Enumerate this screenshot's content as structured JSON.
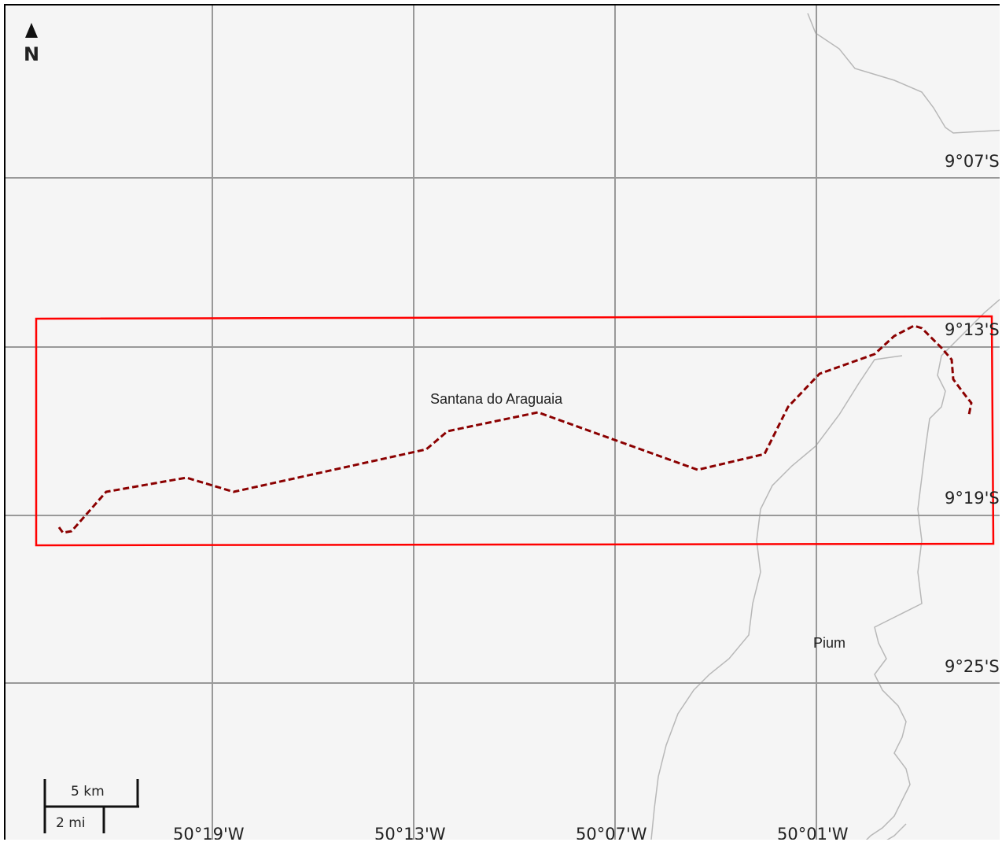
{
  "map": {
    "north_label": "N",
    "latitude_labels": [
      "9°07'S",
      "9°13'S",
      "9°19'S",
      "9°25'S"
    ],
    "longitude_labels": [
      "50°19'W",
      "50°13'W",
      "50°07'W",
      "50°01'W"
    ],
    "places": [
      "Santana do Araguaia",
      "Pium"
    ],
    "scale_bar": {
      "metric": "5 km",
      "imperial": "2 mi"
    },
    "colors": {
      "background": "#f5f5f5",
      "grid": "#999999",
      "boundary": "#bbbbbb",
      "extent_box": "#ff0000",
      "route": "#8b0000"
    }
  }
}
